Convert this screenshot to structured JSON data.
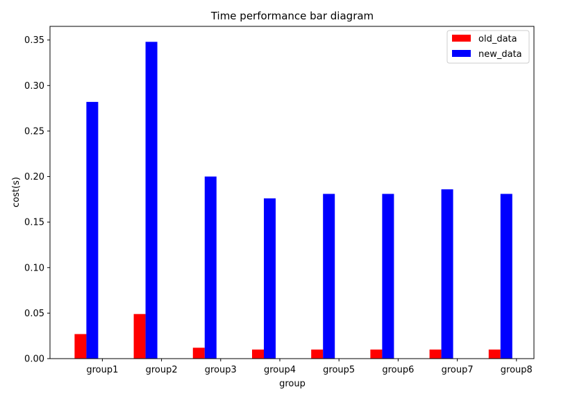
{
  "chart_data": {
    "type": "bar",
    "title": "Time performance bar diagram",
    "xlabel": "group",
    "ylabel": "cost(s)",
    "categories": [
      "group1",
      "group2",
      "group3",
      "group4",
      "group5",
      "group6",
      "group7",
      "group8"
    ],
    "series": [
      {
        "name": "old_data",
        "color": "#ff0000",
        "values": [
          0.027,
          0.049,
          0.012,
          0.01,
          0.01,
          0.01,
          0.01,
          0.01
        ]
      },
      {
        "name": "new_data",
        "color": "#0000ff",
        "values": [
          0.282,
          0.348,
          0.2,
          0.176,
          0.181,
          0.181,
          0.186,
          0.181
        ]
      }
    ],
    "ylim": [
      0,
      0.365
    ],
    "yticks": [
      "0.00",
      "0.05",
      "0.10",
      "0.15",
      "0.20",
      "0.25",
      "0.30",
      "0.35"
    ],
    "grid": false,
    "legend": "top-right"
  }
}
